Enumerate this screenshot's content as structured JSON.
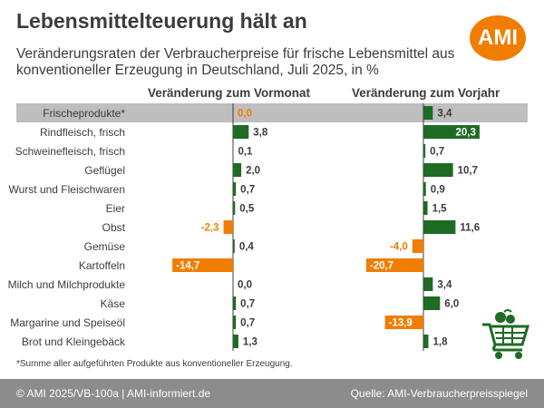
{
  "header": {
    "title": "Lebensmittelteuerung hält an",
    "subtitle": "Veränderungsraten der Verbraucherpreise für frische Lebensmittel aus konventioneller Erzeugung in Deutschland, Juli 2025, in %",
    "logo_text": "AMI"
  },
  "footnote": "*Summe aller aufgeführten Produkte aus konventioneller Erzeugung.",
  "footer": {
    "left": "© AMI 2025/VB-100a | AMI-informiert.de",
    "right": "Quelle: AMI-Verbraucherpreisspiegel"
  },
  "colors": {
    "positive": "#1e6b23",
    "negative": "#f07d00",
    "highlight_row": "#bebebe",
    "footer": "#8c8c8c"
  },
  "icons": [
    "shopping-cart-icon"
  ],
  "chart_data": [
    {
      "type": "bar",
      "orientation": "horizontal",
      "title": "Veränderung zum Vormonat",
      "categories": [
        "Frischeprodukte*",
        "Rindfleisch, frisch",
        "Schweinefleisch, frisch",
        "Geflügel",
        "Wurst und Fleischwaren",
        "Eier",
        "Obst",
        "Gemüse",
        "Kartoffeln",
        "Milch und Milchprodukte",
        "Käse",
        "Margarine und Speiseöl",
        "Brot und Kleingebäck"
      ],
      "values": [
        0.0,
        3.8,
        0.1,
        2.0,
        0.7,
        0.5,
        -2.3,
        0.4,
        -14.7,
        0.0,
        0.7,
        0.7,
        1.3
      ],
      "labels": [
        "0,0",
        "3,8",
        "0,1",
        "2,0",
        "0,7",
        "0,5",
        "-2,3",
        "0,4",
        "-14,7",
        "0,0",
        "0,7",
        "0,7",
        "1,3"
      ]
    },
    {
      "type": "bar",
      "orientation": "horizontal",
      "title": "Veränderung zum Vorjahr",
      "categories": [
        "Frischeprodukte*",
        "Rindfleisch, frisch",
        "Schweinefleisch, frisch",
        "Geflügel",
        "Wurst und Fleischwaren",
        "Eier",
        "Obst",
        "Gemüse",
        "Kartoffeln",
        "Milch und Milchprodukte",
        "Käse",
        "Margarine und Speiseöl",
        "Brot und Kleingebäck"
      ],
      "values": [
        3.4,
        20.3,
        0.7,
        10.7,
        0.9,
        1.5,
        11.6,
        -4.0,
        -20.7,
        3.4,
        6.0,
        -13.9,
        1.8
      ],
      "labels": [
        "3,4",
        "20,3",
        "0,7",
        "10,7",
        "0,9",
        "1,5",
        "11,6",
        "-4,0",
        "-20,7",
        "3,4",
        "6,0",
        "-13,9",
        "1,8"
      ]
    }
  ]
}
